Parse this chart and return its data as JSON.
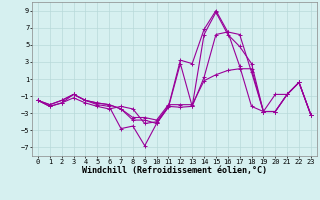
{
  "xlabel": "Windchill (Refroidissement éolien,°C)",
  "x": [
    0,
    1,
    2,
    3,
    4,
    5,
    6,
    7,
    8,
    9,
    10,
    11,
    12,
    13,
    14,
    15,
    16,
    17,
    18,
    19,
    20,
    21,
    22,
    23
  ],
  "series": [
    [
      -1.5,
      -2.2,
      -1.8,
      -0.8,
      -1.5,
      -2.0,
      -2.2,
      -4.8,
      -4.5,
      -6.8,
      -4.2,
      -2.3,
      2.8,
      -2.2,
      6.2,
      8.8,
      6.2,
      4.8,
      2.8,
      -2.8,
      -2.8,
      -0.8,
      0.6,
      -3.2
    ],
    [
      -1.5,
      -2.2,
      -1.8,
      -1.2,
      -1.8,
      -2.2,
      -2.5,
      -2.2,
      -2.5,
      -4.2,
      -4.0,
      -2.2,
      3.2,
      2.8,
      6.8,
      9.0,
      6.5,
      2.5,
      -2.2,
      -2.8,
      -0.8,
      -0.8,
      0.6,
      -3.2
    ],
    [
      -1.5,
      -2.0,
      -1.5,
      -0.8,
      -1.5,
      -1.8,
      -2.0,
      -2.5,
      -3.8,
      -3.8,
      -4.2,
      -2.2,
      -2.3,
      -2.2,
      1.2,
      6.2,
      6.5,
      6.2,
      1.8,
      -2.8,
      -2.8,
      -0.8,
      0.6,
      -3.2
    ],
    [
      -1.5,
      -2.0,
      -1.5,
      -0.8,
      -1.5,
      -1.8,
      -2.0,
      -2.5,
      -3.5,
      -3.5,
      -3.8,
      -2.0,
      -2.0,
      -2.0,
      0.8,
      1.5,
      2.0,
      2.2,
      2.2,
      -2.8,
      -2.8,
      -0.8,
      0.6,
      -3.2
    ]
  ],
  "line_color": "#990099",
  "marker": "+",
  "markersize": 3,
  "linewidth": 0.8,
  "ylim": [
    -8,
    10
  ],
  "xlim": [
    -0.5,
    23.5
  ],
  "yticks": [
    -7,
    -5,
    -3,
    -1,
    1,
    3,
    5,
    7,
    9
  ],
  "xticks": [
    0,
    1,
    2,
    3,
    4,
    5,
    6,
    7,
    8,
    9,
    10,
    11,
    12,
    13,
    14,
    15,
    16,
    17,
    18,
    19,
    20,
    21,
    22,
    23
  ],
  "bg_color": "#d6f0f0",
  "grid_color": "#b8dada",
  "tick_fontsize": 5.0,
  "label_fontsize": 6.0,
  "fig_width": 3.2,
  "fig_height": 2.0,
  "dpi": 100
}
